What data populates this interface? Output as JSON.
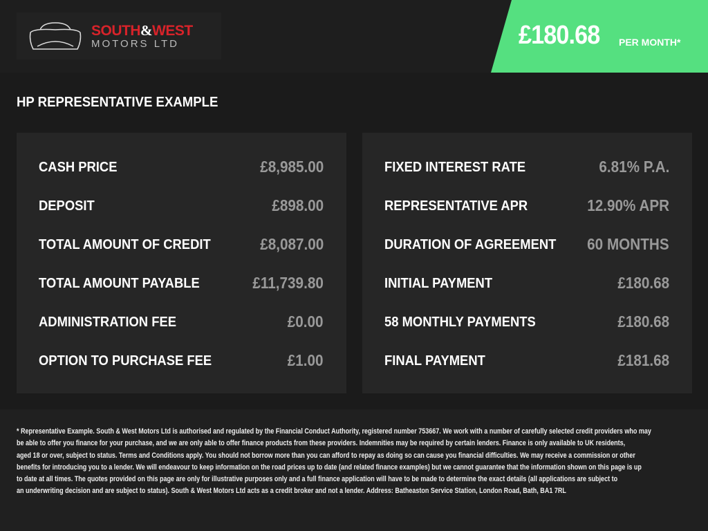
{
  "brand": {
    "name_part1": "SOUTH",
    "amp": "&",
    "name_part2": "WEST",
    "subtitle": "MOTORS LTD"
  },
  "headline": {
    "price": "£180.68",
    "per": "PER MONTH*",
    "accent_color": "#55e080"
  },
  "section_title": "HP REPRESENTATIVE EXAMPLE",
  "left": [
    {
      "label": "CASH PRICE",
      "value": "£8,985.00"
    },
    {
      "label": "DEPOSIT",
      "value": "£898.00"
    },
    {
      "label": "TOTAL AMOUNT OF CREDIT",
      "value": "£8,087.00"
    },
    {
      "label": "TOTAL AMOUNT PAYABLE",
      "value": "£11,739.80"
    },
    {
      "label": "ADMINISTRATION FEE",
      "value": "£0.00"
    },
    {
      "label": "OPTION TO PURCHASE FEE",
      "value": "£1.00"
    }
  ],
  "right": [
    {
      "label": "FIXED INTEREST RATE",
      "value": "6.81% P.A."
    },
    {
      "label": "REPRESENTATIVE APR",
      "value": "12.90% APR"
    },
    {
      "label": "DURATION OF AGREEMENT",
      "value": "60 MONTHS"
    },
    {
      "label": "INITIAL PAYMENT",
      "value": "£180.68"
    },
    {
      "label": "58 MONTHLY PAYMENTS",
      "value": "£180.68"
    },
    {
      "label": "FINAL PAYMENT",
      "value": "£181.68"
    }
  ],
  "disclaimer": [
    "* Representative Example. South & West Motors Ltd is authorised and regulated by the Financial Conduct Authority, registered number 753667. We work with a number of carefully selected credit providers who may",
    "be able to offer you finance for your purchase, and we are only able to offer finance products from these providers. Indemnities may be required by certain lenders. Finance is only available to UK residents,",
    "aged 18 or over, subject to status. Terms and Conditions apply. You should not borrow more than you can afford to repay as doing so can cause you financial difficulties. We may receive a commission or other",
    "benefits for introducing you to a lender. We will endeavour to keep information on the road prices up to date (and related finance examples) but we cannot guarantee that the information shown on this page is up",
    "to date at all times. The quotes provided on this page are only for illustrative purposes only and a full finance application will have to be made to determine the exact details (all applications are subject to",
    "an underwriting decision and are subject to status). South & West Motors Ltd acts as a credit broker and not a lender. Address: Batheaston Service Station, London Road, Bath, BA1 7RL"
  ]
}
